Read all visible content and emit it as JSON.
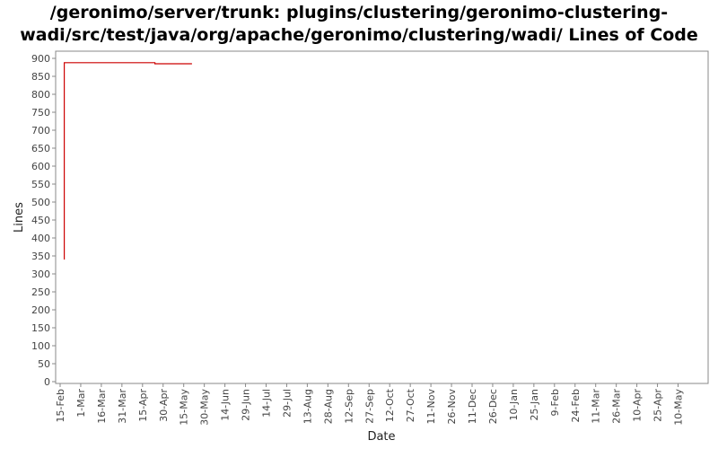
{
  "chart_data": {
    "type": "line",
    "title_lines": [
      "/geronimo/server/trunk: plugins/clustering/geronimo-clustering-",
      "wadi/src/test/java/org/apache/geronimo/clustering/wadi/ Lines of Code"
    ],
    "xlabel": "Date",
    "ylabel": "Lines",
    "ylim": [
      0,
      900
    ],
    "y_ticks": [
      0,
      50,
      100,
      150,
      200,
      250,
      300,
      350,
      400,
      450,
      500,
      550,
      600,
      650,
      700,
      750,
      800,
      850,
      900
    ],
    "x_tick_labels": [
      "15-Feb",
      "1-Mar",
      "16-Mar",
      "31-Mar",
      "15-Apr",
      "30-Apr",
      "15-May",
      "30-May",
      "14-Jun",
      "29-Jun",
      "14-Jul",
      "29-Jul",
      "13-Aug",
      "28-Aug",
      "12-Sep",
      "27-Sep",
      "12-Oct",
      "27-Oct",
      "11-Nov",
      "26-Nov",
      "11-Dec",
      "26-Dec",
      "10-Jan",
      "25-Jan",
      "9-Feb",
      "24-Feb",
      "11-Mar",
      "26-Mar",
      "10-Apr",
      "25-Apr",
      "10-May"
    ],
    "grid": false,
    "series": [
      {
        "color": "#cc0000",
        "points": [
          {
            "x": "18-Feb",
            "y": 340
          },
          {
            "x": "18-Feb",
            "y": 888
          },
          {
            "x": "24-Apr",
            "y": 888
          },
          {
            "x": "24-Apr",
            "y": 885
          },
          {
            "x": "21-May",
            "y": 885
          }
        ]
      }
    ]
  }
}
